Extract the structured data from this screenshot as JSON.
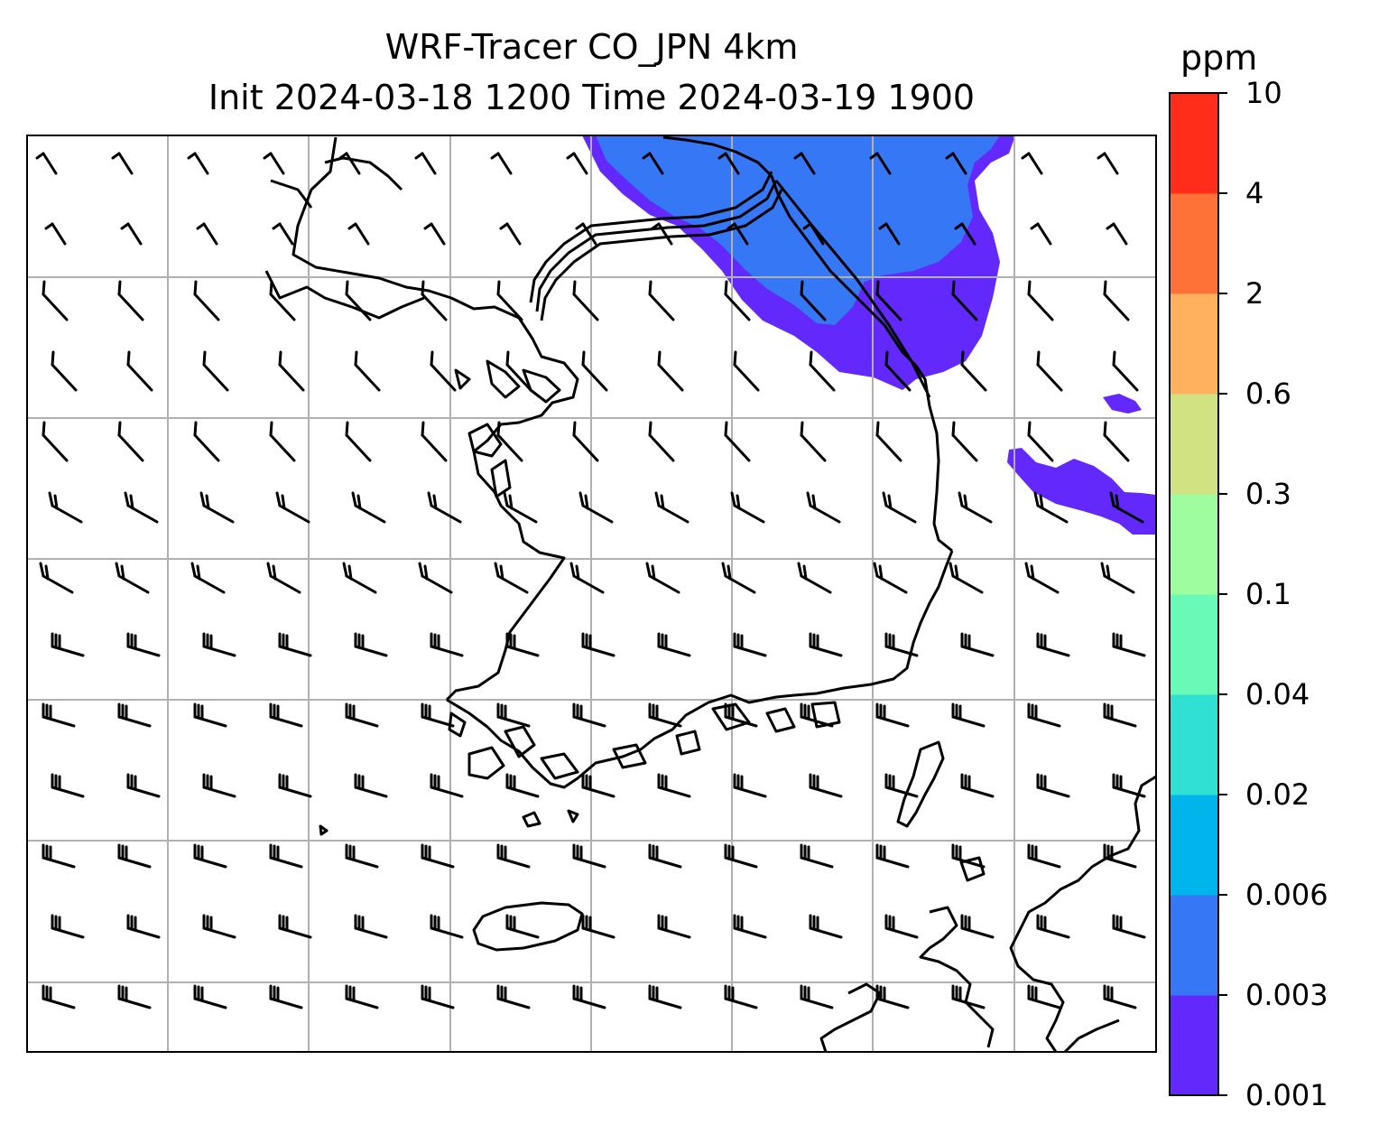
{
  "title": {
    "line1": "WRF-Tracer CO_JPN 4km",
    "line2": "Init 2024-03-18 1200 Time 2024-03-19 1900"
  },
  "colorbar": {
    "unit": "ppm",
    "levels": [
      "0.001",
      "0.003",
      "0.006",
      "0.02",
      "0.04",
      "0.1",
      "0.3",
      "0.6",
      "2",
      "4",
      "10"
    ],
    "colors": [
      "#6328fb",
      "#3577f4",
      "#00b4ec",
      "#2fe0d3",
      "#69fab8",
      "#9efd9d",
      "#d0e282",
      "#ffb15d",
      "#ff7237",
      "#ff2d1a"
    ]
  },
  "map": {
    "features": [
      "coastlines",
      "gridlines",
      "wind-barbs",
      "tracer-concentration-field"
    ],
    "colors": {
      "gridline": "#b0b0b0",
      "coast": "#000000",
      "barb": "#000000"
    }
  }
}
